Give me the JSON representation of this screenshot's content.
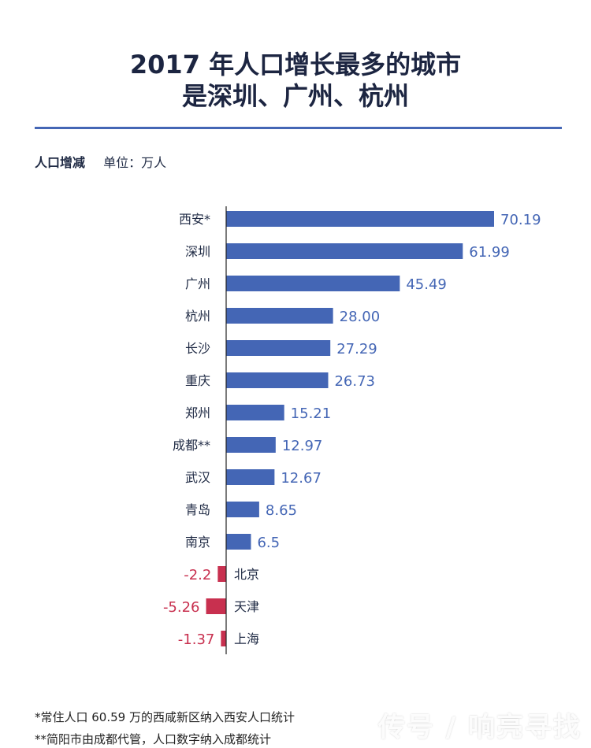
{
  "title_line1": "2017 年人口增长最多的城市",
  "title_line2": "是深圳、广州、杭州",
  "metric_label": "人口增减",
  "unit_label": "单位：万人",
  "footnote1": "*常住人口 60.59 万的西咸新区纳入西安人口统计",
  "footnote2": "**简阳市由成都代管，人口数字纳入成都统计",
  "watermark": "传号 / 响亮寻找",
  "colors": {
    "positive": "#4466b5",
    "negative": "#c8304f",
    "title": "#1c2541",
    "rule": "#4466b5"
  },
  "chart_data": {
    "type": "bar",
    "orientation": "horizontal",
    "categories": [
      "西安*",
      "深圳",
      "广州",
      "杭州",
      "长沙",
      "重庆",
      "郑州",
      "成都**",
      "武汉",
      "青岛",
      "南京",
      "北京",
      "天津",
      "上海"
    ],
    "values": [
      70.19,
      61.99,
      45.49,
      28.0,
      27.29,
      26.73,
      15.21,
      12.97,
      12.67,
      8.65,
      6.5,
      -2.2,
      -5.26,
      -1.37
    ],
    "value_labels": [
      "70.19",
      "61.99",
      "45.49",
      "28.00",
      "27.29",
      "26.73",
      "15.21",
      "12.97",
      "12.67",
      "8.65",
      "6.5",
      "-2.2",
      "-5.26",
      "-1.37"
    ],
    "title": "2017 年人口增长最多的城市是深圳、广州、杭州",
    "xlabel": "",
    "ylabel": "人口增减",
    "xlim": [
      -7,
      70.19
    ],
    "grid": false,
    "legend": "none"
  }
}
